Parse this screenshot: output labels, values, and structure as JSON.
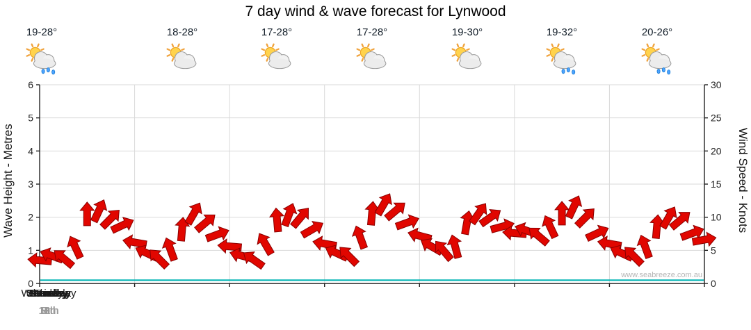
{
  "title": "7 day wind & wave forecast for Lynwood",
  "watermark": "www.seabreeze.com.au",
  "colors": {
    "arrow_fill": "#e10600",
    "arrow_stroke": "#8a0000",
    "wave_line": "#00b4b4",
    "grid": "#d9d9d9",
    "axis": "#222222",
    "date_text": "#9a9a9a"
  },
  "axes": {
    "left_label": "Wave Height - Metres",
    "right_label": "Wind Speed - Knots",
    "left_ticks": [
      0,
      1,
      2,
      3,
      4,
      5,
      6
    ],
    "right_ticks": [
      0,
      5,
      10,
      15,
      20,
      25,
      30
    ],
    "left_range": [
      0,
      6
    ],
    "right_range": [
      0,
      30
    ]
  },
  "days": [
    {
      "name": "Wednesday",
      "date": "7th",
      "temp": "18-28°",
      "condition": "partly-cloudy",
      "bold": false
    },
    {
      "name": "Thursday",
      "date": "8th",
      "temp": "17-28°",
      "condition": "partly-cloudy",
      "bold": false
    },
    {
      "name": "Friday",
      "date": "9th",
      "temp": "17-28°",
      "condition": "partly-cloudy",
      "bold": false
    },
    {
      "name": "Saturday",
      "date": "10th",
      "temp": "19-30°",
      "condition": "partly-cloudy",
      "bold": true
    },
    {
      "name": "Sunday",
      "date": "11th",
      "temp": "19-32°",
      "condition": "showers",
      "bold": true
    },
    {
      "name": "Monday",
      "date": "12th",
      "temp": "20-26°",
      "condition": "showers",
      "bold": false
    },
    {
      "name": "Tuesday",
      "date": "13th",
      "temp": "19-28°",
      "condition": "showers",
      "bold": false
    }
  ],
  "chart_data": {
    "type": "line",
    "title": "7 day wind & wave forecast for Lynwood",
    "x_unit": "3-hourly samples across 7 days",
    "categories_days": [
      "Wednesday 7th",
      "Thursday 8th",
      "Friday 9th",
      "Saturday 10th",
      "Sunday 11th",
      "Monday 12th",
      "Tuesday 13th"
    ],
    "grid": true,
    "legend": "none",
    "series": [
      {
        "name": "Wind Speed",
        "unit": "knots",
        "axis": "right",
        "ylim": [
          0,
          30
        ],
        "marker": "wind-arrow",
        "values": [
          3.5,
          4.2,
          3.8,
          5.5,
          10.5,
          11,
          9.8,
          8.8,
          6.2,
          4.6,
          3.8,
          5.2,
          8.2,
          10.6,
          9.2,
          7.4,
          5.6,
          4.2,
          3.6,
          6,
          9.6,
          10.4,
          10,
          8.2,
          6,
          4.6,
          4.2,
          7,
          10.6,
          12,
          11,
          9.2,
          7.2,
          5.6,
          5,
          5.6,
          9.2,
          10.6,
          10,
          8.6,
          7.6,
          8,
          7.2,
          8.6,
          10.6,
          11.6,
          10,
          7.6,
          6,
          4.6,
          4.2,
          5.6,
          8.6,
          10,
          9.6,
          7.6,
          6.6
        ],
        "directions_deg": [
          185,
          200,
          220,
          245,
          270,
          295,
          315,
          335,
          190,
          205,
          225,
          250,
          275,
          300,
          320,
          340,
          185,
          195,
          215,
          240,
          265,
          290,
          310,
          330,
          190,
          205,
          225,
          250,
          275,
          300,
          320,
          340,
          195,
          210,
          230,
          255,
          280,
          305,
          325,
          345,
          185,
          200,
          220,
          245,
          270,
          295,
          315,
          335,
          190,
          205,
          225,
          250,
          275,
          300,
          320,
          340,
          350
        ]
      },
      {
        "name": "Wave Height",
        "unit": "metres",
        "axis": "left",
        "ylim": [
          0,
          6
        ],
        "constant_value": 0.1
      }
    ]
  }
}
